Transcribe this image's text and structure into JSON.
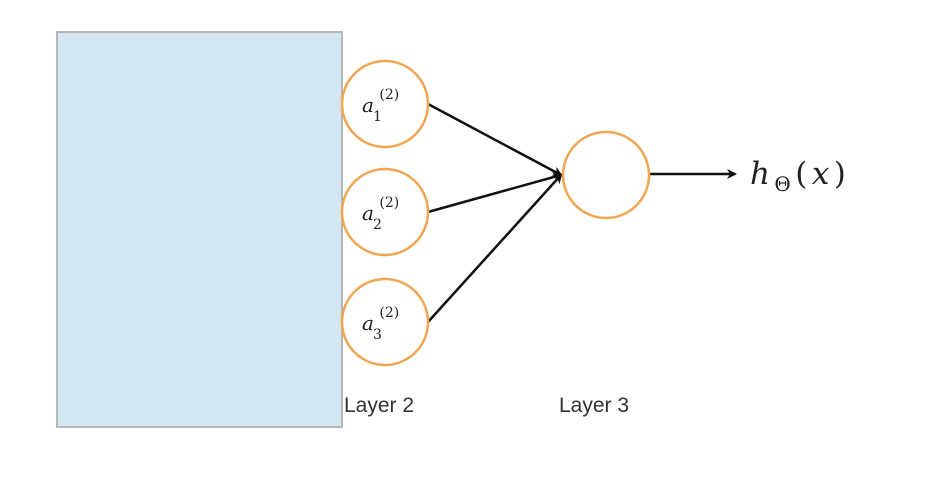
{
  "diagram": {
    "type": "neural-network",
    "overlay": "occluded-input-region",
    "layers": [
      {
        "label": "Layer 2",
        "nodes": [
          {
            "var": "a",
            "sub": "1",
            "sup": "(2)"
          },
          {
            "var": "a",
            "sub": "2",
            "sup": "(2)"
          },
          {
            "var": "a",
            "sub": "3",
            "sup": "(2)"
          }
        ]
      },
      {
        "label": "Layer 3",
        "nodes": [
          {
            "var": "",
            "sub": "",
            "sup": ""
          }
        ]
      }
    ],
    "edges": [
      {
        "from": "a1",
        "to": "output"
      },
      {
        "from": "a2",
        "to": "output"
      },
      {
        "from": "a3",
        "to": "output"
      }
    ],
    "output": {
      "func": "h",
      "sub": "Θ",
      "open": "(",
      "arg": "x",
      "close": ")"
    }
  },
  "colors": {
    "node_stroke": "#f0a550",
    "edge": "#111111",
    "overlay_fill": "#d4e6f1"
  }
}
